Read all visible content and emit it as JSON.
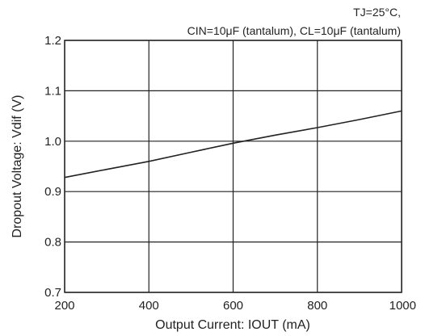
{
  "chart_data": {
    "type": "line",
    "annotations": [
      "TJ=25°C,",
      "CIN=10μF (tantalum), CL=10μF (tantalum)"
    ],
    "xlabel": "Output Current: IOUT (mA)",
    "ylabel": "Dropout Voltage: Vdif (V)",
    "xlim": [
      200,
      1000
    ],
    "ylim": [
      0.7,
      1.2
    ],
    "xticks": [
      "200",
      "400",
      "600",
      "800",
      "1000"
    ],
    "yticks": [
      "0.7",
      "0.8",
      "0.9",
      "1.0",
      "1.1",
      "1.2"
    ],
    "grid": true,
    "series": [
      {
        "x": [
          200,
          300,
          400,
          500,
          600,
          700,
          800,
          900,
          1000
        ],
        "y": [
          0.928,
          0.944,
          0.96,
          0.978,
          0.996,
          1.012,
          1.027,
          1.043,
          1.06
        ]
      }
    ],
    "colors": {
      "line": "#222222",
      "grid": "#222222"
    }
  }
}
